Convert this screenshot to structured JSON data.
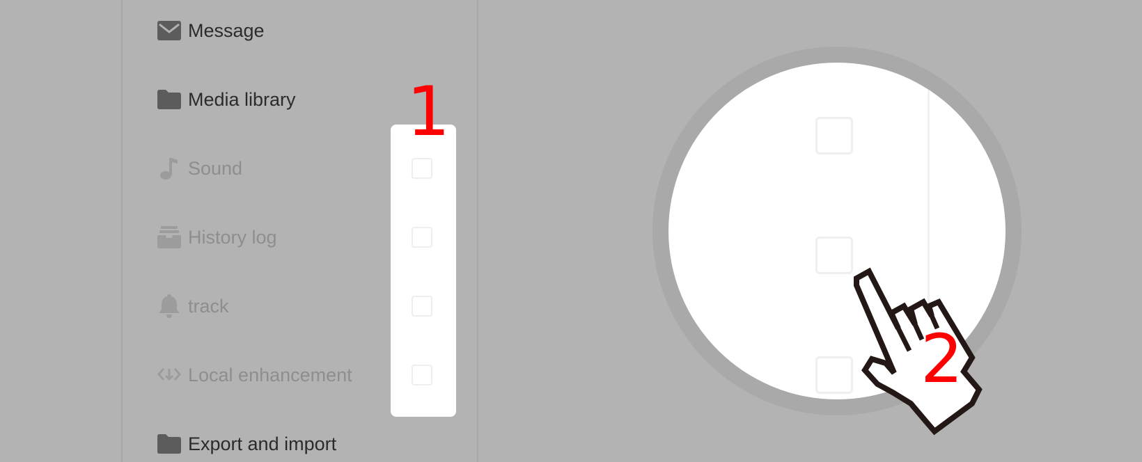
{
  "menu": {
    "items": [
      {
        "label": "Message",
        "icon": "envelope-icon",
        "state": "active"
      },
      {
        "label": "Media library",
        "icon": "folder-icon",
        "state": "active"
      },
      {
        "label": "Sound",
        "icon": "music-note-icon",
        "state": "muted"
      },
      {
        "label": "History log",
        "icon": "archive-box-icon",
        "state": "muted"
      },
      {
        "label": "track",
        "icon": "bell-icon",
        "state": "muted"
      },
      {
        "label": "Local enhancement",
        "icon": "code-download-icon",
        "state": "muted"
      },
      {
        "label": "Export and import",
        "icon": "folder-icon",
        "state": "active"
      }
    ]
  },
  "annotations": {
    "step1": "1",
    "step2": "2",
    "color": "#ff0000"
  },
  "checkboxes": [
    {
      "for": "Sound",
      "checked": false
    },
    {
      "for": "History log",
      "checked": false
    },
    {
      "for": "track",
      "checked": false
    },
    {
      "for": "Local enhancement",
      "checked": false
    }
  ],
  "cursor": {
    "icon": "pointing-hand-cursor-icon"
  }
}
